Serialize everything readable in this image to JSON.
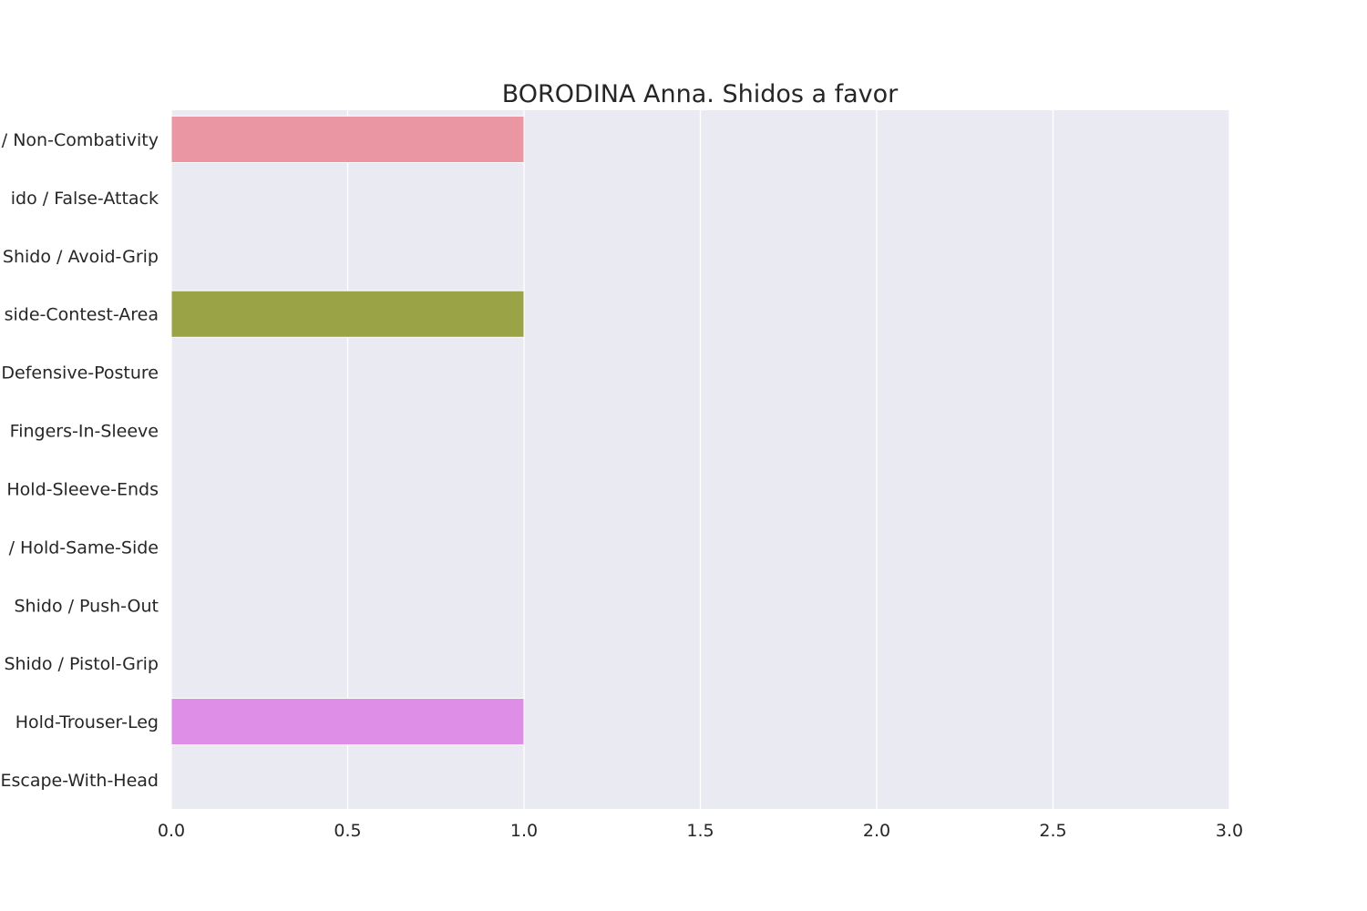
{
  "chart_data": {
    "type": "bar",
    "orientation": "horizontal",
    "title": "BORODINA Anna. Shidos a favor",
    "xlabel": "",
    "ylabel": "",
    "xlim": [
      0,
      3
    ],
    "x_ticks": [
      "0.0",
      "0.5",
      "1.0",
      "1.5",
      "2.0",
      "2.5",
      "3.0"
    ],
    "grid": true,
    "categories": [
      "/ Non-Combativity",
      "ido / False-Attack",
      "Shido / Avoid-Grip",
      "side-Contest-Area",
      "Defensive-Posture",
      "Fingers-In-Sleeve",
      "Hold-Sleeve-Ends",
      "/ Hold-Same-Side",
      "Shido / Push-Out",
      "Shido / Pistol-Grip",
      "Hold-Trouser-Leg",
      "Escape-With-Head"
    ],
    "values": [
      1,
      0,
      0,
      1,
      0,
      0,
      0,
      0,
      0,
      0,
      1,
      0
    ],
    "colors": [
      "#ea96a3",
      "#e19a6b",
      "#c8a450",
      "#9aa447",
      "#5fb046",
      "#4eae8d",
      "#52aba8",
      "#55a8c0",
      "#75a4e6",
      "#b59bf0",
      "#df8ee8",
      "#ea8bc3"
    ],
    "background": "#eaeaf2",
    "grid_color": "#ffffff"
  }
}
